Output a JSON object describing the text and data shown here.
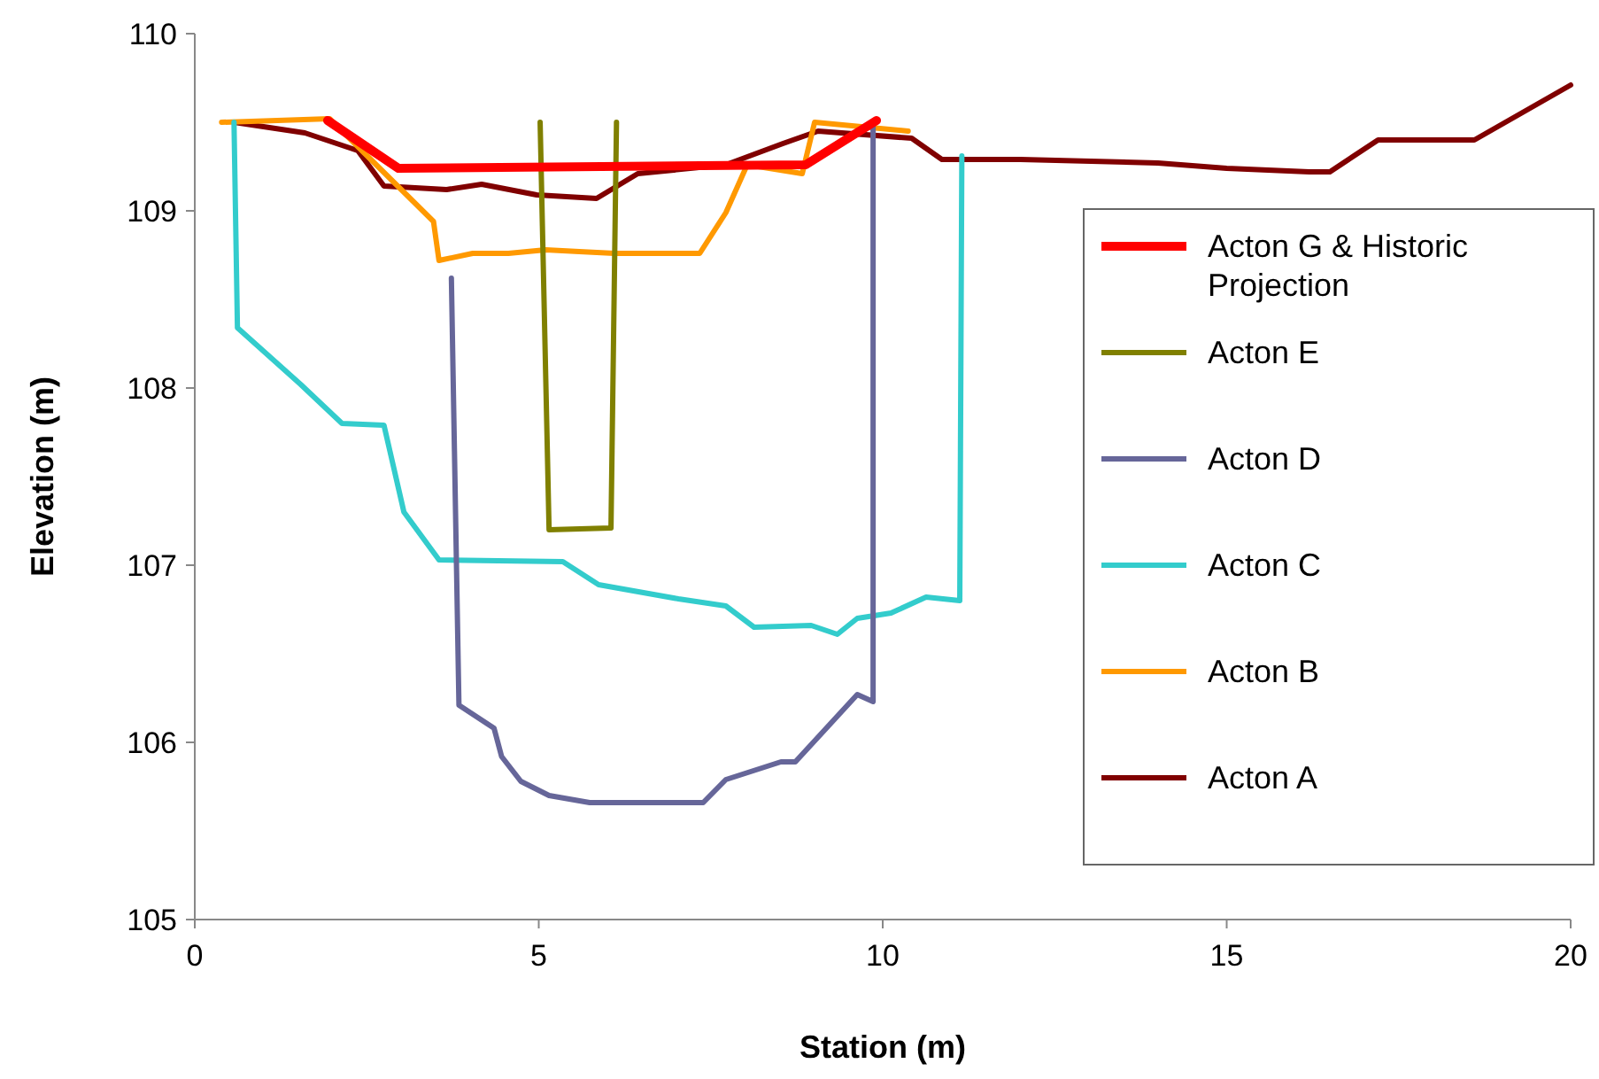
{
  "chart_data": {
    "type": "line",
    "xlabel": "Station (m)",
    "ylabel": "Elevation (m)",
    "xlim": [
      0,
      20
    ],
    "xticks": [
      0,
      5,
      10,
      15,
      20
    ],
    "ylim": [
      105,
      110
    ],
    "yticks": [
      105,
      106,
      107,
      108,
      109,
      110
    ],
    "grid": false,
    "legend": "right",
    "marker": "none",
    "line_style": "solid",
    "series": [
      {
        "name": "Acton G & Historic Projection",
        "color": "#ff0000",
        "x": [
          1.93,
          2.96,
          8.88,
          9.91
        ],
        "values": [
          109.51,
          109.24,
          109.26,
          109.51
        ]
      },
      {
        "name": "Acton E",
        "color": "#808000",
        "x": [
          5.02,
          5.15,
          6.05,
          6.13
        ],
        "values": [
          109.5,
          107.2,
          107.21,
          109.5
        ]
      },
      {
        "name": "Acton D",
        "color": "#666699",
        "x": [
          3.73,
          3.84,
          4.35,
          4.46,
          4.74,
          5.15,
          5.74,
          7.39,
          7.72,
          8.52,
          8.73,
          9.63,
          9.86,
          9.86
        ],
        "values": [
          108.62,
          106.21,
          106.08,
          105.92,
          105.78,
          105.7,
          105.66,
          105.66,
          105.79,
          105.89,
          105.89,
          106.27,
          106.23,
          109.5
        ]
      },
      {
        "name": "Acton C",
        "color": "#33cccc",
        "x": [
          0.57,
          0.62,
          1.54,
          2.14,
          2.75,
          3.04,
          3.55,
          5.35,
          5.87,
          7.03,
          7.72,
          8.13,
          8.96,
          9.34,
          9.63,
          10.12,
          10.63,
          11.12,
          11.15
        ],
        "values": [
          109.5,
          108.34,
          108.02,
          107.8,
          107.79,
          107.3,
          107.03,
          107.02,
          106.89,
          106.81,
          106.77,
          106.65,
          106.66,
          106.61,
          106.7,
          106.73,
          106.82,
          106.8,
          109.31
        ]
      },
      {
        "name": "Acton B",
        "color": "#ff9900",
        "x": [
          0.39,
          1.96,
          3.47,
          3.55,
          4.04,
          4.56,
          5.1,
          5.59,
          6.1,
          7.34,
          7.72,
          8.03,
          8.83,
          9.01,
          10.37
        ],
        "values": [
          109.5,
          109.52,
          108.94,
          108.72,
          108.76,
          108.76,
          108.78,
          108.77,
          108.76,
          108.76,
          108.99,
          109.26,
          109.21,
          109.5,
          109.45
        ]
      },
      {
        "name": "Acton A",
        "color": "#800000",
        "x": [
          0.57,
          1.6,
          2.37,
          2.75,
          3.66,
          4.17,
          4.97,
          5.84,
          6.44,
          7.72,
          8.55,
          9.06,
          10.42,
          10.86,
          12,
          14,
          15,
          16.2,
          16.5,
          17.2,
          18.6,
          20
        ],
        "values": [
          109.5,
          109.44,
          109.34,
          109.14,
          109.12,
          109.15,
          109.09,
          109.07,
          109.21,
          109.26,
          109.38,
          109.45,
          109.41,
          109.29,
          109.29,
          109.27,
          109.24,
          109.22,
          109.22,
          109.4,
          109.4,
          109.71
        ]
      }
    ]
  }
}
